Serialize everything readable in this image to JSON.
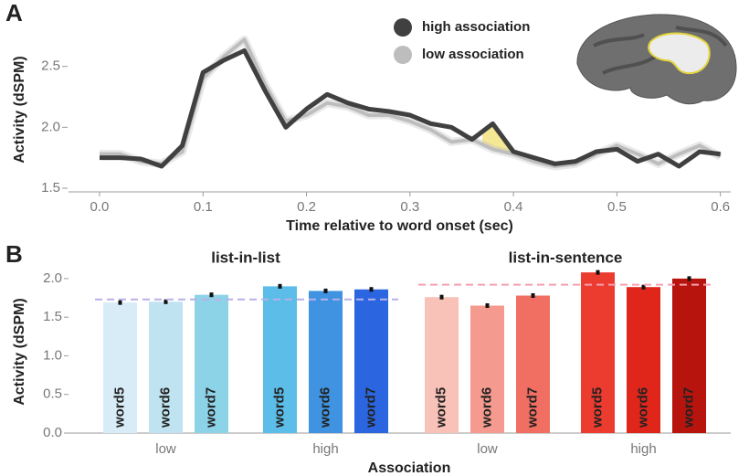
{
  "chart_data": [
    {
      "type": "line",
      "panel_label": "A",
      "x_label": "Time relative to word onset (sec)",
      "y_label": "Activity (dSPM)",
      "x": [
        0,
        0.02,
        0.04,
        0.06,
        0.08,
        0.1,
        0.12,
        0.14,
        0.16,
        0.18,
        0.2,
        0.22,
        0.24,
        0.26,
        0.28,
        0.3,
        0.32,
        0.34,
        0.36,
        0.38,
        0.4,
        0.42,
        0.44,
        0.46,
        0.48,
        0.5,
        0.52,
        0.54,
        0.56,
        0.58,
        0.6
      ],
      "series": [
        {
          "name": "low association",
          "color": "#bdbdbd",
          "values": [
            1.78,
            1.78,
            1.72,
            1.7,
            1.8,
            2.4,
            2.58,
            2.72,
            2.35,
            2.05,
            2.1,
            2.2,
            2.17,
            2.1,
            2.1,
            2.05,
            1.98,
            1.88,
            1.9,
            1.82,
            1.78,
            1.72,
            1.68,
            1.7,
            1.78,
            1.85,
            1.78,
            1.7,
            1.78,
            1.85,
            1.76
          ]
        },
        {
          "name": "high association",
          "color": "#404040",
          "values": [
            1.75,
            1.75,
            1.74,
            1.68,
            1.85,
            2.45,
            2.55,
            2.63,
            2.3,
            2.0,
            2.15,
            2.27,
            2.2,
            2.15,
            2.13,
            2.1,
            2.03,
            2.0,
            1.9,
            2.03,
            1.8,
            1.75,
            1.7,
            1.72,
            1.8,
            1.82,
            1.72,
            1.78,
            1.68,
            1.8,
            1.78
          ]
        }
      ],
      "xlim": [
        -0.03,
        0.61
      ],
      "ylim": [
        1.47,
        2.82
      ],
      "xticks": [
        {
          "value": 0,
          "label": "0.0"
        },
        0.1,
        0.2,
        0.3,
        0.4,
        0.5,
        0.6
      ],
      "yticks": [
        1.5,
        {
          "value": 2,
          "label": "2.0"
        },
        2.5
      ],
      "legend": "top",
      "shaded_region": {
        "x": [
          0.37,
          0.41
        ],
        "color": "#f3e27a"
      }
    },
    {
      "type": "grouped-bar",
      "panel_label": "B",
      "x_label": "Association",
      "y_label": "Activity (dSPM)",
      "ylim": [
        0,
        2.2
      ],
      "yticks": [
        {
          "value": 0,
          "label": "0.0"
        },
        0.5,
        {
          "value": 1,
          "label": "1.0"
        },
        1.5,
        {
          "value": 2,
          "label": "2.0"
        }
      ],
      "facets": [
        {
          "title": "list-in-list",
          "categories": [
            "low",
            "high"
          ],
          "reference_line": 1.73,
          "reference_color": "#b8b0e8",
          "series": [
            {
              "name": "word5",
              "colors": [
                "#d8ecf8",
                "#5bbde8"
              ],
              "values": [
                1.69,
                1.9
              ],
              "errors": [
                0.03,
                0.03
              ]
            },
            {
              "name": "word6",
              "colors": [
                "#bfe3f0",
                "#3f93e0"
              ],
              "values": [
                1.7,
                1.84
              ],
              "errors": [
                0.03,
                0.03
              ]
            },
            {
              "name": "word7",
              "colors": [
                "#8dd3e8",
                "#2b66e0"
              ],
              "values": [
                1.79,
                1.86
              ],
              "errors": [
                0.03,
                0.03
              ]
            }
          ]
        },
        {
          "title": "list-in-sentence",
          "categories": [
            "low",
            "high"
          ],
          "reference_line": 1.92,
          "reference_color": "#f4a0b0",
          "series": [
            {
              "name": "word5",
              "colors": [
                "#f9c2b8",
                "#ec3b2f"
              ],
              "values": [
                1.76,
                2.08
              ],
              "errors": [
                0.03,
                0.03
              ]
            },
            {
              "name": "word6",
              "colors": [
                "#f59a8e",
                "#e0261b"
              ],
              "values": [
                1.65,
                1.89
              ],
              "errors": [
                0.03,
                0.03
              ]
            },
            {
              "name": "word7",
              "colors": [
                "#f06e62",
                "#b8140e"
              ],
              "values": [
                1.78,
                2.0
              ],
              "errors": [
                0.03,
                0.03
              ]
            }
          ]
        }
      ]
    }
  ]
}
